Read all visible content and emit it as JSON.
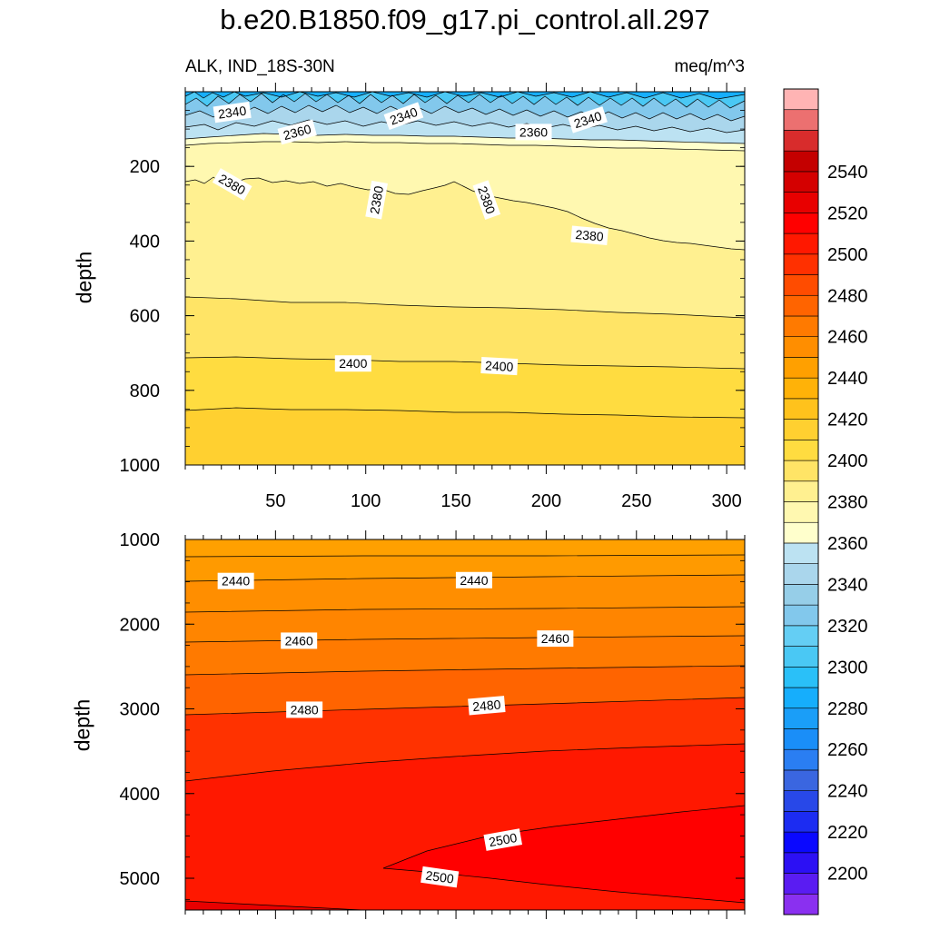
{
  "chart_data": {
    "type": "contour",
    "title": "b.e20.B1850.f09_g17.pi_control.all.297",
    "left_subtitle": "ALK, IND_18S-30N",
    "right_subtitle": "meq/m^3",
    "panels": [
      {
        "name": "upper",
        "ylabel": "depth",
        "ylim": [
          0,
          1000
        ],
        "xlim": [
          0,
          310
        ],
        "yticks": [
          200,
          400,
          600,
          800,
          1000
        ],
        "xticks": [
          50,
          100,
          150,
          200,
          250,
          300
        ],
        "contour_labels": [
          {
            "text": "2340",
            "x": 26,
            "y": 55,
            "rot": -8
          },
          {
            "text": "2340",
            "x": 121,
            "y": 65,
            "rot": -20
          },
          {
            "text": "2340",
            "x": 223,
            "y": 75,
            "rot": -18
          },
          {
            "text": "2360",
            "x": 62,
            "y": 108,
            "rot": -15
          },
          {
            "text": "2360",
            "x": 193,
            "y": 108,
            "rot": 0
          },
          {
            "text": "2380",
            "x": 26,
            "y": 248,
            "rot": 30
          },
          {
            "text": "2380",
            "x": 106,
            "y": 290,
            "rot": -80
          },
          {
            "text": "2380",
            "x": 167,
            "y": 290,
            "rot": 70
          },
          {
            "text": "2380",
            "x": 224,
            "y": 385,
            "rot": 5
          },
          {
            "text": "2400",
            "x": 93,
            "y": 728,
            "rot": 0
          },
          {
            "text": "2400",
            "x": 174,
            "y": 735,
            "rot": 3
          }
        ]
      },
      {
        "name": "lower",
        "ylabel": "depth",
        "ylim": [
          1000,
          5375
        ],
        "xlim": [
          0,
          310
        ],
        "yticks": [
          1000,
          2000,
          3000,
          4000,
          5000
        ],
        "contour_labels": [
          {
            "text": "2440",
            "x": 28,
            "y": 1490,
            "rot": 0
          },
          {
            "text": "2440",
            "x": 160,
            "y": 1480,
            "rot": 0
          },
          {
            "text": "2460",
            "x": 63,
            "y": 2195,
            "rot": 0
          },
          {
            "text": "2460",
            "x": 205,
            "y": 2170,
            "rot": 0
          },
          {
            "text": "2480",
            "x": 66,
            "y": 3010,
            "rot": 0
          },
          {
            "text": "2480",
            "x": 167,
            "y": 2960,
            "rot": -5
          },
          {
            "text": "2500",
            "x": 176,
            "y": 4545,
            "rot": -10
          },
          {
            "text": "2500",
            "x": 141,
            "y": 4985,
            "rot": 8
          }
        ]
      }
    ],
    "colorbar": {
      "labels": [
        "2200",
        "2220",
        "2240",
        "2260",
        "2280",
        "2300",
        "2320",
        "2340",
        "2360",
        "2380",
        "2400",
        "2420",
        "2440",
        "2460",
        "2480",
        "2500",
        "2520",
        "2540"
      ],
      "colors": [
        "#8a30f0",
        "#5a1cf2",
        "#2c10f4",
        "#0a08ff",
        "#1c2cf2",
        "#2848e8",
        "#3a66e0",
        "#2a7ef2",
        "#1a8ef8",
        "#1a9ef8",
        "#16aefc",
        "#2ac0f8",
        "#4ac8f4",
        "#64cef4",
        "#82c8ec",
        "#96cee8",
        "#aad6ec",
        "#bce2f2",
        "#ffffcc",
        "#fff8b0",
        "#fff090",
        "#ffe466",
        "#ffdc40",
        "#ffd030",
        "#ffc21c",
        "#ffb208",
        "#ffa000",
        "#ff8e00",
        "#ff7a00",
        "#ff6400",
        "#ff4c00",
        "#ff3000",
        "#ff1800",
        "#ff0000",
        "#e80000",
        "#d40000",
        "#c40000",
        "#d82c2c",
        "#ec7070",
        "#ffb4b4"
      ]
    }
  }
}
